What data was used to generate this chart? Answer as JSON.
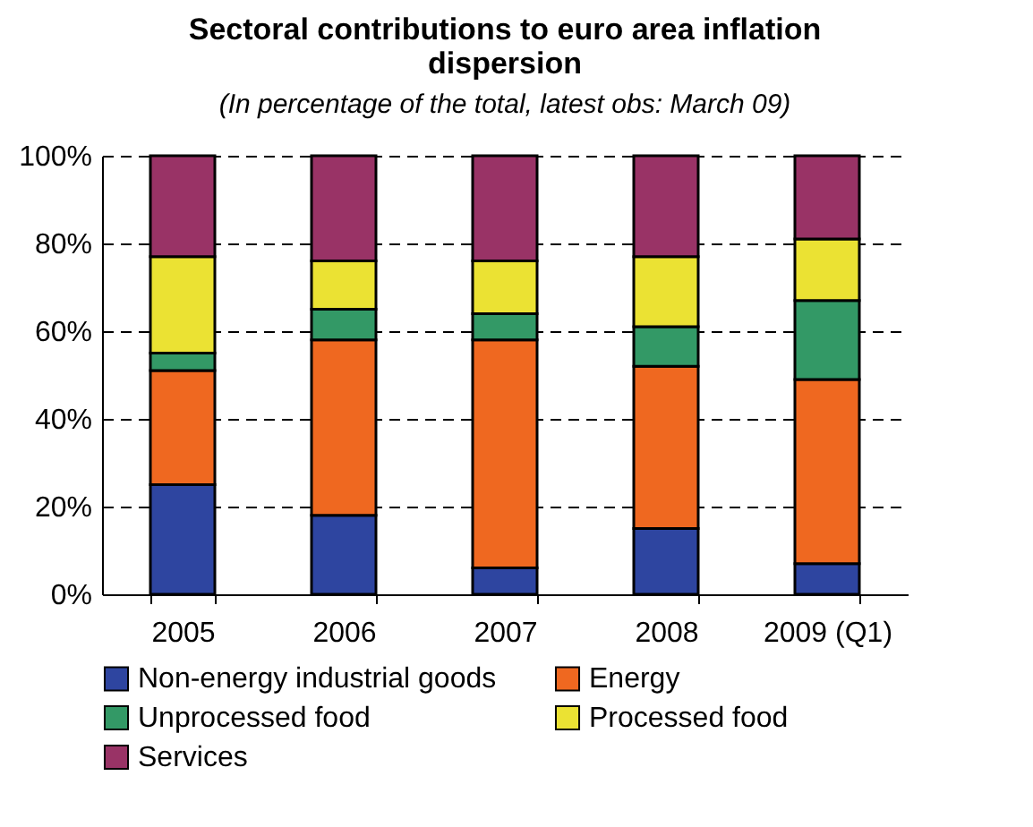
{
  "chart_data": {
    "type": "bar",
    "title": "Sectoral contributions to euro area inflation dispersion",
    "subtitle": "(In percentage of the total, latest obs: March 09)",
    "categories": [
      "2005",
      "2006",
      "2007",
      "2008",
      "2009 (Q1)"
    ],
    "stacked": true,
    "series": [
      {
        "name": "Non-energy industrial goods",
        "color": "#2e45a0",
        "values": [
          25,
          18,
          6,
          15,
          7
        ]
      },
      {
        "name": "Energy",
        "color": "#ef6820",
        "values": [
          26,
          40,
          52,
          37,
          42
        ]
      },
      {
        "name": "Unprocessed food",
        "color": "#339966",
        "values": [
          4,
          7,
          6,
          9,
          18
        ]
      },
      {
        "name": "Processed food",
        "color": "#ebe233",
        "values": [
          22,
          11,
          12,
          16,
          14
        ]
      },
      {
        "name": "Services",
        "color": "#993366",
        "values": [
          23,
          24,
          24,
          23,
          19
        ]
      }
    ],
    "ylim": [
      0,
      100
    ],
    "yticks": [
      {
        "value": 0,
        "label": "0%"
      },
      {
        "value": 20,
        "label": "20%"
      },
      {
        "value": 40,
        "label": "40%"
      },
      {
        "value": 60,
        "label": "60%"
      },
      {
        "value": 80,
        "label": "80%"
      },
      {
        "value": 100,
        "label": "100%"
      }
    ],
    "grid": "y",
    "legend": "bottom"
  }
}
